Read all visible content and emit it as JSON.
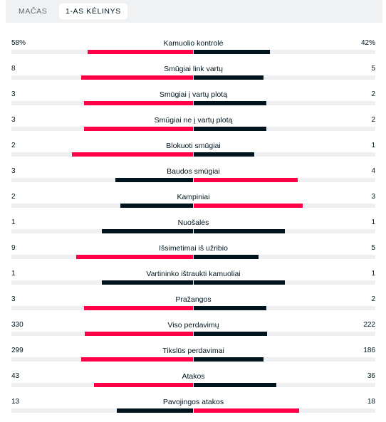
{
  "tabs": [
    {
      "label": "MAČAS",
      "active": false
    },
    {
      "label": "1-AS KĖLINYS",
      "active": true
    }
  ],
  "colors": {
    "leader": "#ff0046",
    "trailer": "#00141e",
    "track": "#eeeff0"
  },
  "stats": [
    {
      "category": "Kamuolio kontrolė",
      "home": "58%",
      "away": "42%",
      "home_share": 0.58,
      "away_share": 0.42
    },
    {
      "category": "Smūgiai link vartų",
      "home": "8",
      "away": "5",
      "home_share": 0.615,
      "away_share": 0.385
    },
    {
      "category": "Smūgiai į vartų plotą",
      "home": "3",
      "away": "2",
      "home_share": 0.6,
      "away_share": 0.4
    },
    {
      "category": "Smūgiai ne į vartų plotą",
      "home": "3",
      "away": "2",
      "home_share": 0.6,
      "away_share": 0.4
    },
    {
      "category": "Blokuoti smūgiai",
      "home": "2",
      "away": "1",
      "home_share": 0.667,
      "away_share": 0.333
    },
    {
      "category": "Baudos smūgiai",
      "home": "3",
      "away": "4",
      "home_share": 0.429,
      "away_share": 0.571
    },
    {
      "category": "Kampiniai",
      "home": "2",
      "away": "3",
      "home_share": 0.4,
      "away_share": 0.6
    },
    {
      "category": "Nuošalės",
      "home": "1",
      "away": "1",
      "home_share": 0.5,
      "away_share": 0.5
    },
    {
      "category": "Išsimetimai iš užribio",
      "home": "9",
      "away": "5",
      "home_share": 0.643,
      "away_share": 0.357
    },
    {
      "category": "Vartininko ištraukti kamuoliai",
      "home": "1",
      "away": "1",
      "home_share": 0.5,
      "away_share": 0.5
    },
    {
      "category": "Pražangos",
      "home": "3",
      "away": "2",
      "home_share": 0.6,
      "away_share": 0.4
    },
    {
      "category": "Viso perdavimų",
      "home": "330",
      "away": "222",
      "home_share": 0.598,
      "away_share": 0.402
    },
    {
      "category": "Tikslūs perdavimai",
      "home": "299",
      "away": "186",
      "home_share": 0.616,
      "away_share": 0.384
    },
    {
      "category": "Atakos",
      "home": "43",
      "away": "36",
      "home_share": 0.544,
      "away_share": 0.456
    },
    {
      "category": "Pavojingos atakos",
      "home": "13",
      "away": "18",
      "home_share": 0.419,
      "away_share": 0.581
    }
  ]
}
